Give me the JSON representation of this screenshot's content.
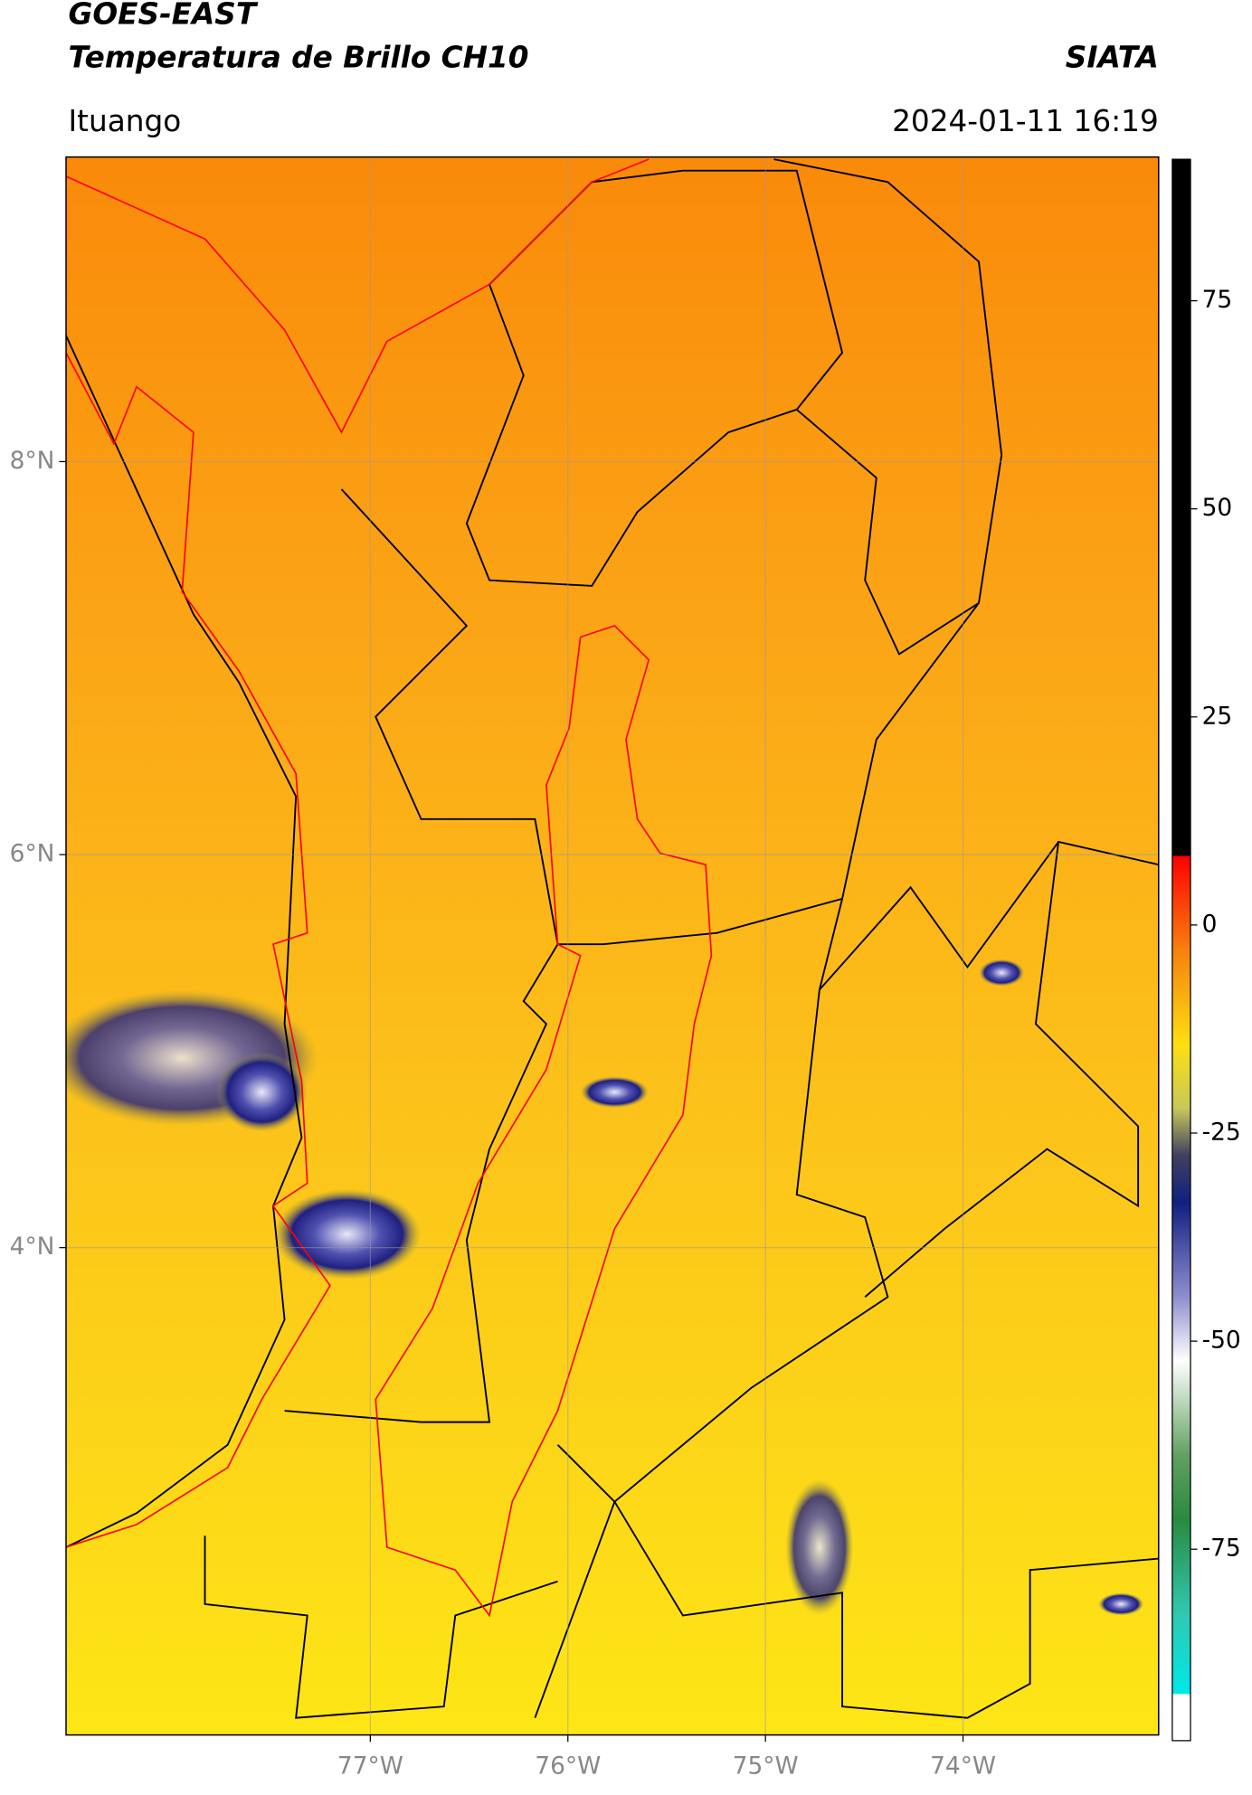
{
  "header": {
    "title": "GOES-EAST",
    "subtitle": "Temperatura de Brillo CH10",
    "source": "SIATA",
    "region": "Ituango",
    "datetime": "2024-01-11 16:19"
  },
  "map": {
    "lonlim": [
      -78.54,
      -73.01
    ],
    "latlim": [
      1.52,
      9.55
    ],
    "lonticks": [
      {
        "value": -77,
        "label": "77°W"
      },
      {
        "value": -76,
        "label": "76°W"
      },
      {
        "value": -75,
        "label": "75°W"
      },
      {
        "value": -74,
        "label": "74°W"
      }
    ],
    "latticks": [
      {
        "value": 8,
        "label": "8°N"
      },
      {
        "value": 6,
        "label": "6°N"
      },
      {
        "value": 4,
        "label": "4°N"
      }
    ]
  },
  "colorbar": {
    "lim": [
      -98,
      92
    ],
    "ticks": [
      75,
      50,
      25,
      0,
      -25,
      -50,
      -75
    ]
  }
}
